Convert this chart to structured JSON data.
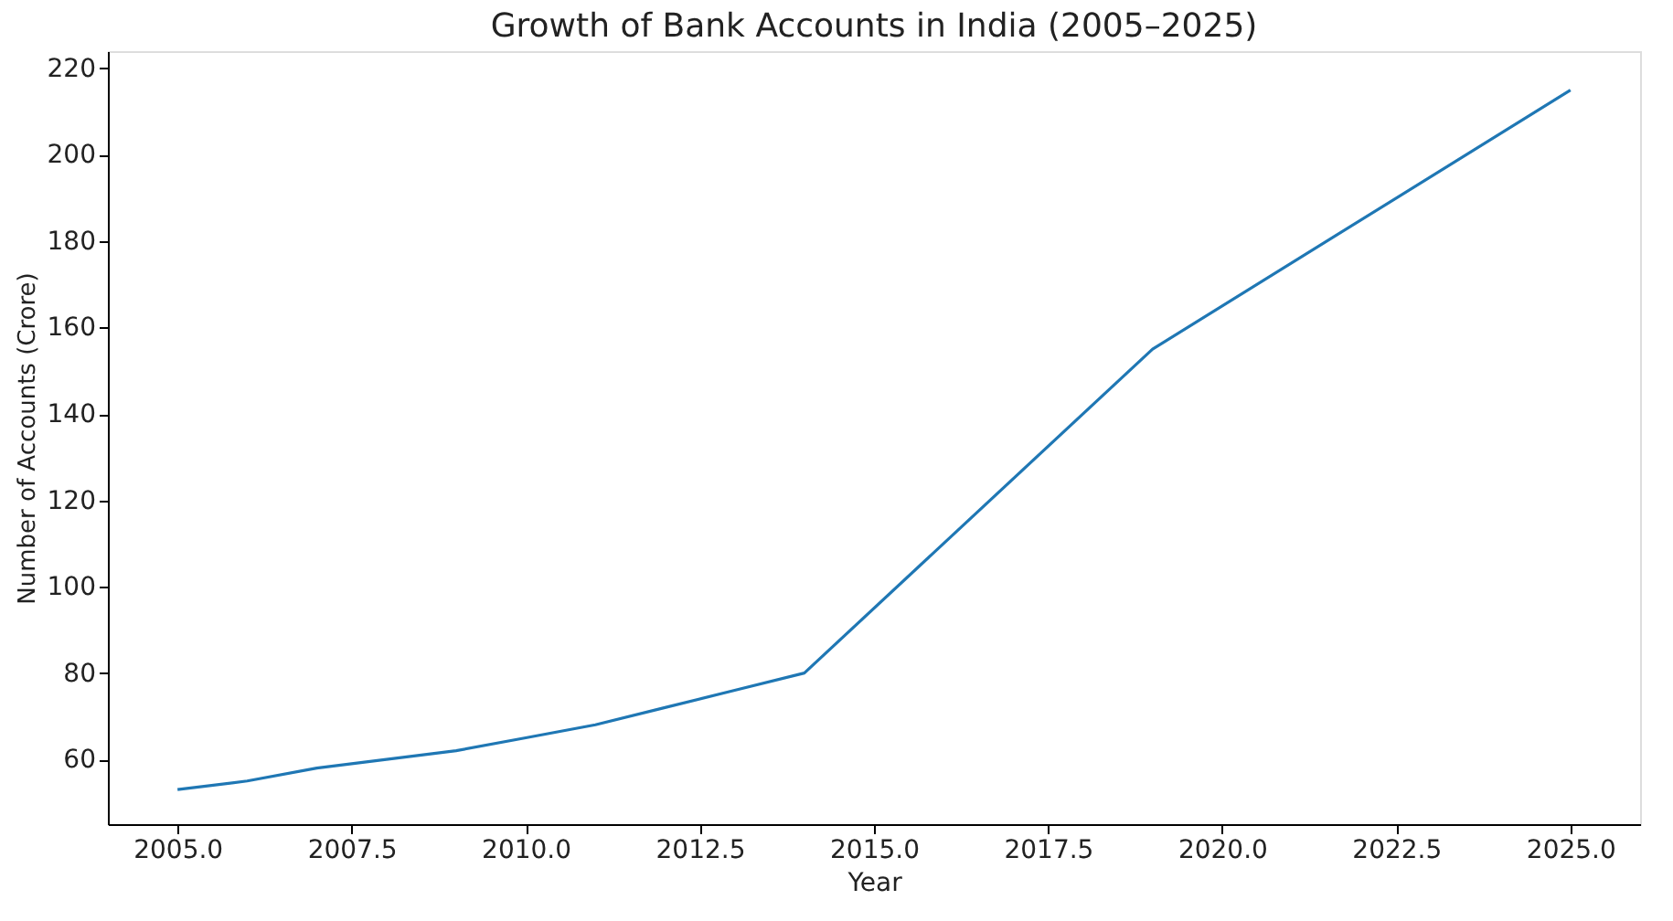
{
  "chart_data": {
    "type": "line",
    "title": "Growth of Bank Accounts in India (2005–2025)",
    "xlabel": "Year",
    "ylabel": "Number of Accounts (Crore)",
    "x": [
      2005,
      2006,
      2007,
      2008,
      2009,
      2010,
      2011,
      2012,
      2013,
      2014,
      2019,
      2025
    ],
    "series": [
      {
        "color": "#1f77b4",
        "values": [
          53,
          55,
          58,
          60,
          62,
          65,
          68,
          72,
          76,
          80,
          155,
          215
        ]
      }
    ],
    "xlim": [
      2004,
      2026
    ],
    "xticks": [
      {
        "value": 2005,
        "label": "2005.0"
      },
      {
        "value": 2007.5,
        "label": "2007.5"
      },
      {
        "value": 2010,
        "label": "2010.0"
      },
      {
        "value": 2012.5,
        "label": "2012.5"
      },
      {
        "value": 2015,
        "label": "2015.0"
      },
      {
        "value": 2017.5,
        "label": "2017.5"
      },
      {
        "value": 2020,
        "label": "2020.0"
      },
      {
        "value": 2022.5,
        "label": "2022.5"
      },
      {
        "value": 2025,
        "label": "2025.0"
      }
    ],
    "ylim": [
      45,
      224
    ],
    "yticks": [
      60,
      80,
      100,
      120,
      140,
      160,
      180,
      200,
      220
    ],
    "grid": false,
    "marker": "none",
    "line_style": "solid"
  }
}
